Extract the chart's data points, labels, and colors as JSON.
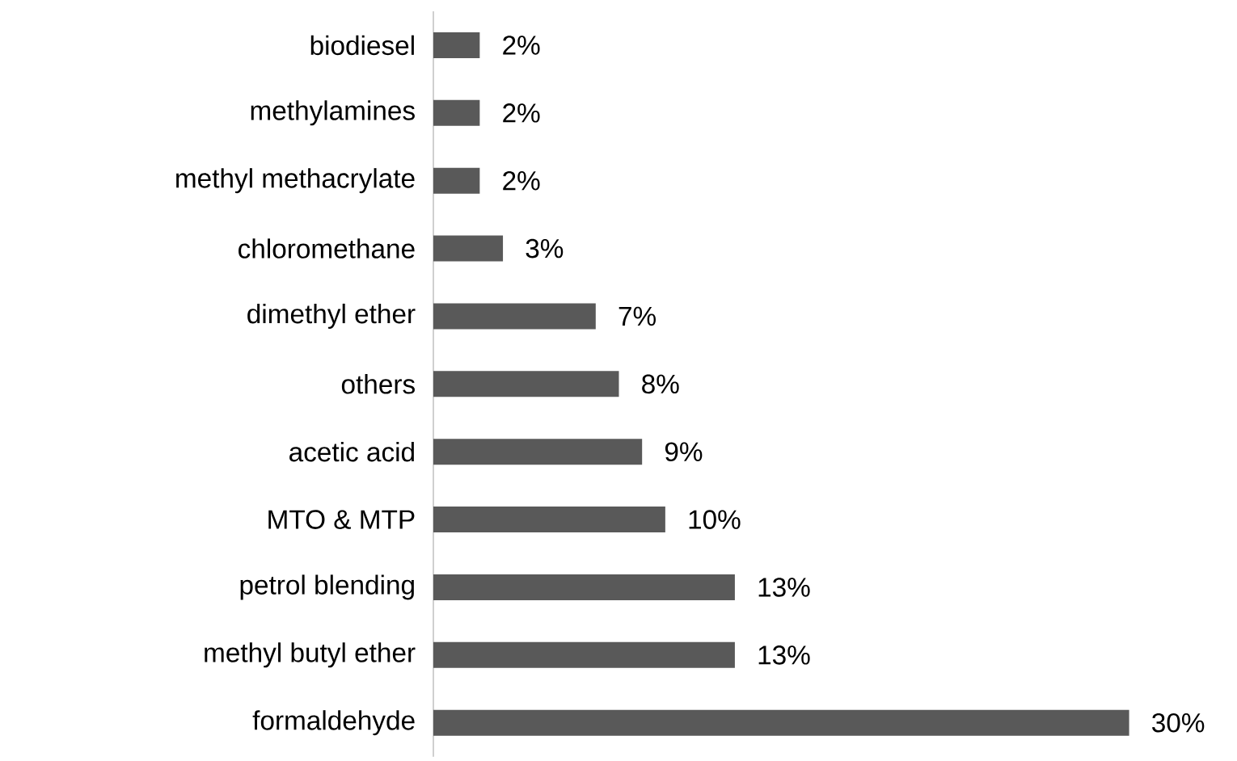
{
  "chart_data": {
    "type": "bar",
    "orientation": "horizontal",
    "categories": [
      "biodiesel",
      "methylamines",
      "methyl methacrylate",
      "chloromethane",
      "dimethyl ether",
      "others",
      "acetic acid",
      "MTO & MTP",
      "petrol blending",
      "methyl butyl ether",
      "formaldehyde"
    ],
    "values": [
      2,
      2,
      2,
      3,
      7,
      8,
      9,
      10,
      13,
      13,
      30
    ],
    "value_labels": [
      "2%",
      "2%",
      "2%",
      "3%",
      "7%",
      "8%",
      "9%",
      "10%",
      "13%",
      "13%",
      "30%"
    ],
    "color": "#595959",
    "tick_labels": "y"
  }
}
